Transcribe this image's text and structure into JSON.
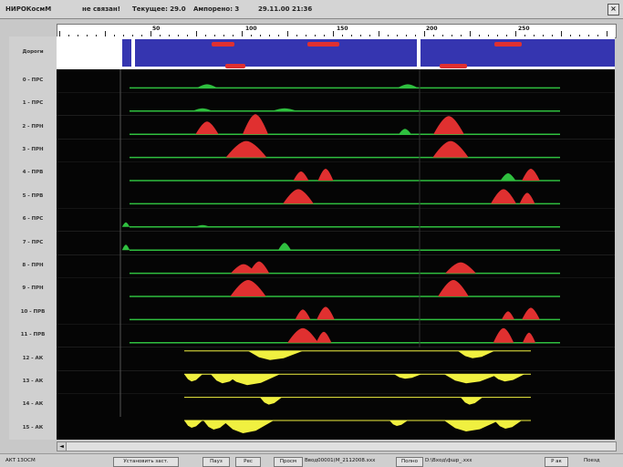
{
  "window": {
    "app_title": "НИРОКосмМ",
    "status_text": "не связан!",
    "current_label": "Текущее: 29.0",
    "current_value": "Ампорено: 3",
    "datetime": "29.11.00 21:36",
    "close_symbol": "×"
  },
  "ruler": {
    "ticks": [
      "50",
      "100",
      "150",
      "200",
      "250"
    ]
  },
  "colors": {
    "track_bg": "#050505",
    "baseline": "#2fbf3f",
    "peak": "#e03030",
    "yellow": "#f0f040",
    "roads_band": "#3535b0"
  },
  "tracks": [
    {
      "label": "Дороги"
    },
    {
      "label": "0 - ПРС"
    },
    {
      "label": "1 - ПРС"
    },
    {
      "label": "2 - ПРН"
    },
    {
      "label": "3 - ПРН"
    },
    {
      "label": "4 - ПРВ"
    },
    {
      "label": "5 - ПРВ"
    },
    {
      "label": "6 - ПРС"
    },
    {
      "label": "7 - ПРС"
    },
    {
      "label": "8 - ПРН"
    },
    {
      "label": "9 - ПРН"
    },
    {
      "label": "10 - ПРВ"
    },
    {
      "label": "11 - ПРВ"
    },
    {
      "label": "12 - АК"
    },
    {
      "label": "13 - АК"
    },
    {
      "label": "14 - АК"
    },
    {
      "label": "15 - АК"
    }
  ],
  "scrollbar": {
    "left_arrow": "◄"
  },
  "statusbar": {
    "left_text": "АКТ 13ОСМ",
    "set_label_button": "Установить заст.",
    "pause_button": "Пауз",
    "play_button": "Рес",
    "stop_button": "Просм",
    "file_path": "Ввод00001(М_2112008.ххх",
    "copy_button": "Полно",
    "file2": "D:\\Вход\\фшр_.ххх",
    "mode": "Р ак",
    "last": "Поезд"
  }
}
